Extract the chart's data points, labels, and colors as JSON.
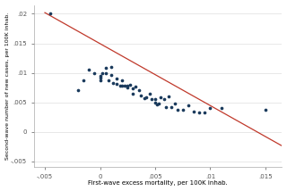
{
  "title": "",
  "xlabel": "First-wave excess mortality, per 100K inhab.",
  "ylabel": "Second-wave number of new cases, per 100K inhab.",
  "xlim": [
    -0.006,
    0.0165
  ],
  "ylim": [
    -0.006,
    0.0215
  ],
  "xticks": [
    -0.005,
    0,
    0.005,
    0.01,
    0.015
  ],
  "yticks": [
    -0.005,
    0,
    0.005,
    0.01,
    0.015,
    0.02
  ],
  "xtick_labels": [
    "-.005",
    "0",
    ".005",
    ".01",
    ".015"
  ],
  "ytick_labels": [
    "-.005",
    "0",
    ".005",
    ".01",
    ".015",
    ".02"
  ],
  "dot_color": "#1a3a5c",
  "line_color": "#c0392b",
  "background_color": "#ffffff",
  "grid_color": "#e8e8e8",
  "scatter_x": [
    -0.0045,
    -0.002,
    -0.0015,
    -0.001,
    -0.0005,
    0.0,
    0.0,
    0.0,
    0.0002,
    0.0005,
    0.0005,
    0.0008,
    0.001,
    0.001,
    0.0012,
    0.0015,
    0.0015,
    0.0018,
    0.002,
    0.002,
    0.0022,
    0.0025,
    0.0025,
    0.0027,
    0.003,
    0.003,
    0.0032,
    0.0035,
    0.0037,
    0.004,
    0.0042,
    0.0045,
    0.0047,
    0.005,
    0.005,
    0.0052,
    0.0053,
    0.0055,
    0.0058,
    0.006,
    0.0062,
    0.0065,
    0.0068,
    0.007,
    0.0075,
    0.008,
    0.0085,
    0.009,
    0.0095,
    0.01,
    0.011,
    0.015
  ],
  "scatter_y": [
    0.02,
    0.007,
    0.0087,
    0.0105,
    0.01,
    0.0088,
    0.0092,
    0.0095,
    0.01,
    0.0108,
    0.01,
    0.0087,
    0.011,
    0.0097,
    0.0083,
    0.0082,
    0.009,
    0.0078,
    0.0087,
    0.0078,
    0.0078,
    0.0078,
    0.0075,
    0.008,
    0.0065,
    0.0073,
    0.0076,
    0.007,
    0.0062,
    0.0057,
    0.0058,
    0.0064,
    0.0056,
    0.0056,
    0.005,
    0.0047,
    0.0048,
    0.0059,
    0.0055,
    0.0042,
    0.006,
    0.0042,
    0.0048,
    0.0038,
    0.0038,
    0.0045,
    0.0034,
    0.0033,
    0.0033,
    0.004,
    0.004,
    0.0038
  ],
  "line_x": [
    -0.005,
    0.0165
  ],
  "line_slope": -1.05,
  "line_intercept": 0.01495
}
